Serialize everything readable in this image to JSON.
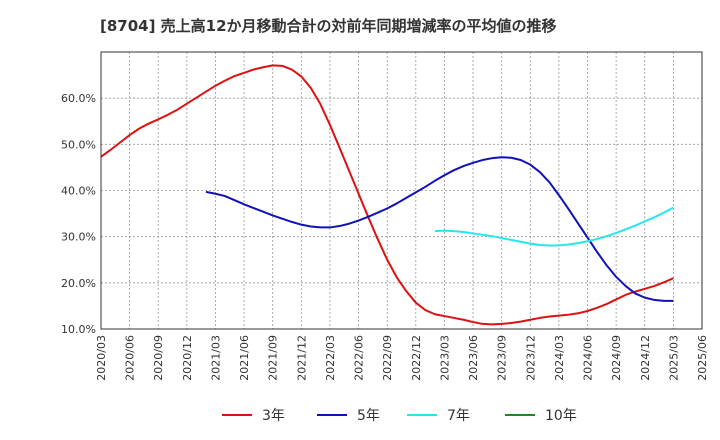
{
  "chart_data": {
    "type": "line",
    "title": "[8704]  売上高12か月移動合計の対前年同期増減率の平均値の推移",
    "xlabel": "",
    "ylabel": "",
    "ylim": [
      10,
      70
    ],
    "yticks": [
      10,
      20,
      30,
      40,
      50,
      60
    ],
    "y_tick_labels": [
      "10.0%",
      "20.0%",
      "30.0%",
      "40.0%",
      "50.0%",
      "60.0%"
    ],
    "x_tick_labels": [
      "2020/03",
      "2020/06",
      "2020/09",
      "2020/12",
      "2021/03",
      "2021/06",
      "2021/09",
      "2021/12",
      "2022/03",
      "2022/06",
      "2022/09",
      "2022/12",
      "2023/03",
      "2023/06",
      "2023/09",
      "2023/12",
      "2024/03",
      "2024/06",
      "2024/09",
      "2024/12",
      "2025/03",
      "2025/06"
    ],
    "grid": true,
    "legend_position": "bottom",
    "series": [
      {
        "name": "3年",
        "color": "#dd1111",
        "points": [
          [
            "2020/03",
            47.3
          ],
          [
            "2020/04",
            48.8
          ],
          [
            "2020/05",
            50.4
          ],
          [
            "2020/06",
            52.0
          ],
          [
            "2020/07",
            53.4
          ],
          [
            "2020/08",
            54.5
          ],
          [
            "2020/09",
            55.4
          ],
          [
            "2020/10",
            56.4
          ],
          [
            "2020/11",
            57.5
          ],
          [
            "2020/12",
            58.8
          ],
          [
            "2021/01",
            60.1
          ],
          [
            "2021/02",
            61.4
          ],
          [
            "2021/03",
            62.7
          ],
          [
            "2021/04",
            63.8
          ],
          [
            "2021/05",
            64.8
          ],
          [
            "2021/06",
            65.5
          ],
          [
            "2021/07",
            66.2
          ],
          [
            "2021/08",
            66.7
          ],
          [
            "2021/09",
            67.1
          ],
          [
            "2021/10",
            67.0
          ],
          [
            "2021/11",
            66.2
          ],
          [
            "2021/12",
            64.7
          ],
          [
            "2022/01",
            62.2
          ],
          [
            "2022/02",
            58.7
          ],
          [
            "2022/03",
            54.2
          ],
          [
            "2022/04",
            49.3
          ],
          [
            "2022/05",
            44.3
          ],
          [
            "2022/06",
            39.3
          ],
          [
            "2022/07",
            34.3
          ],
          [
            "2022/08",
            29.5
          ],
          [
            "2022/09",
            25.0
          ],
          [
            "2022/10",
            21.2
          ],
          [
            "2022/11",
            18.2
          ],
          [
            "2022/12",
            15.7
          ],
          [
            "2023/01",
            14.1
          ],
          [
            "2023/02",
            13.2
          ],
          [
            "2023/03",
            12.8
          ],
          [
            "2023/04",
            12.4
          ],
          [
            "2023/05",
            12.0
          ],
          [
            "2023/06",
            11.5
          ],
          [
            "2023/07",
            11.1
          ],
          [
            "2023/08",
            11.0
          ],
          [
            "2023/09",
            11.1
          ],
          [
            "2023/10",
            11.3
          ],
          [
            "2023/11",
            11.6
          ],
          [
            "2023/12",
            12.0
          ],
          [
            "2024/01",
            12.4
          ],
          [
            "2024/02",
            12.7
          ],
          [
            "2024/03",
            12.9
          ],
          [
            "2024/04",
            13.1
          ],
          [
            "2024/05",
            13.4
          ],
          [
            "2024/06",
            13.9
          ],
          [
            "2024/07",
            14.6
          ],
          [
            "2024/08",
            15.4
          ],
          [
            "2024/09",
            16.4
          ],
          [
            "2024/10",
            17.4
          ],
          [
            "2024/11",
            18.1
          ],
          [
            "2024/12",
            18.7
          ],
          [
            "2025/01",
            19.3
          ],
          [
            "2025/02",
            20.1
          ],
          [
            "2025/03",
            21.0
          ]
        ]
      },
      {
        "name": "5年",
        "color": "#1111bb",
        "points": [
          [
            "2021/02",
            39.7
          ],
          [
            "2021/03",
            39.3
          ],
          [
            "2021/04",
            38.8
          ],
          [
            "2021/05",
            37.9
          ],
          [
            "2021/06",
            37.0
          ],
          [
            "2021/07",
            36.2
          ],
          [
            "2021/08",
            35.4
          ],
          [
            "2021/09",
            34.6
          ],
          [
            "2021/10",
            33.9
          ],
          [
            "2021/11",
            33.2
          ],
          [
            "2021/12",
            32.6
          ],
          [
            "2022/01",
            32.2
          ],
          [
            "2022/02",
            32.0
          ],
          [
            "2022/03",
            32.0
          ],
          [
            "2022/04",
            32.3
          ],
          [
            "2022/05",
            32.8
          ],
          [
            "2022/06",
            33.5
          ],
          [
            "2022/07",
            34.3
          ],
          [
            "2022/08",
            35.2
          ],
          [
            "2022/09",
            36.1
          ],
          [
            "2022/10",
            37.2
          ],
          [
            "2022/11",
            38.4
          ],
          [
            "2022/12",
            39.6
          ],
          [
            "2023/01",
            40.8
          ],
          [
            "2023/02",
            42.1
          ],
          [
            "2023/03",
            43.3
          ],
          [
            "2023/04",
            44.4
          ],
          [
            "2023/05",
            45.3
          ],
          [
            "2023/06",
            46.0
          ],
          [
            "2023/07",
            46.6
          ],
          [
            "2023/08",
            47.0
          ],
          [
            "2023/09",
            47.2
          ],
          [
            "2023/10",
            47.1
          ],
          [
            "2023/11",
            46.6
          ],
          [
            "2023/12",
            45.6
          ],
          [
            "2024/01",
            44.0
          ],
          [
            "2024/02",
            41.8
          ],
          [
            "2024/03",
            39.0
          ],
          [
            "2024/04",
            36.0
          ],
          [
            "2024/05",
            32.9
          ],
          [
            "2024/06",
            29.8
          ],
          [
            "2024/07",
            26.7
          ],
          [
            "2024/08",
            23.8
          ],
          [
            "2024/09",
            21.3
          ],
          [
            "2024/10",
            19.3
          ],
          [
            "2024/11",
            17.7
          ],
          [
            "2024/12",
            16.8
          ],
          [
            "2025/01",
            16.3
          ],
          [
            "2025/02",
            16.1
          ],
          [
            "2025/03",
            16.1
          ]
        ]
      },
      {
        "name": "7年",
        "color": "#22e8ee",
        "points": [
          [
            "2023/02",
            31.2
          ],
          [
            "2023/03",
            31.3
          ],
          [
            "2023/04",
            31.2
          ],
          [
            "2023/05",
            31.0
          ],
          [
            "2023/06",
            30.7
          ],
          [
            "2023/07",
            30.4
          ],
          [
            "2023/08",
            30.1
          ],
          [
            "2023/09",
            29.7
          ],
          [
            "2023/10",
            29.3
          ],
          [
            "2023/11",
            28.9
          ],
          [
            "2023/12",
            28.5
          ],
          [
            "2024/01",
            28.2
          ],
          [
            "2024/02",
            28.1
          ],
          [
            "2024/03",
            28.1
          ],
          [
            "2024/04",
            28.3
          ],
          [
            "2024/05",
            28.6
          ],
          [
            "2024/06",
            29.0
          ],
          [
            "2024/07",
            29.5
          ],
          [
            "2024/08",
            30.1
          ],
          [
            "2024/09",
            30.8
          ],
          [
            "2024/10",
            31.6
          ],
          [
            "2024/11",
            32.4
          ],
          [
            "2024/12",
            33.3
          ],
          [
            "2025/01",
            34.2
          ],
          [
            "2025/02",
            35.2
          ],
          [
            "2025/03",
            36.3
          ]
        ]
      },
      {
        "name": "10年",
        "color": "#228822",
        "points": []
      }
    ]
  }
}
